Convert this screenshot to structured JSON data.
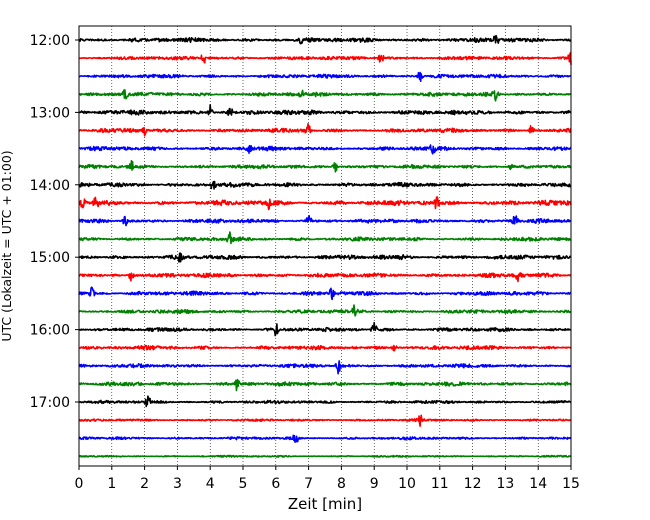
{
  "chart_data": {
    "type": "line",
    "title": "",
    "xlabel": "Zeit  [min]",
    "ylabel": "UTC (Lokalzeit = UTC + 01:00)",
    "xlim": [
      0,
      15
    ],
    "x_ticks": [
      "0",
      "1",
      "2",
      "3",
      "4",
      "5",
      "6",
      "7",
      "8",
      "9",
      "10",
      "11",
      "12",
      "13",
      "14",
      "15"
    ],
    "y_ticks": [
      "12:00",
      "13:00",
      "14:00",
      "15:00",
      "16:00",
      "17:00"
    ],
    "grid": "vertical dotted lines at each minute",
    "trace_interval_min": 15,
    "traces": [
      {
        "start": "12:00",
        "color": "#000000",
        "amplitude": 0.26,
        "spikes": [
          6.8,
          12.7
        ]
      },
      {
        "start": "12:15",
        "color": "#ff0000",
        "amplitude": 0.22,
        "spikes": [
          3.8,
          9.2,
          15.0
        ]
      },
      {
        "start": "12:30",
        "color": "#0000ff",
        "amplitude": 0.22,
        "spikes": [
          10.4
        ]
      },
      {
        "start": "12:45",
        "color": "#008000",
        "amplitude": 0.24,
        "spikes": [
          1.4,
          6.8,
          12.7
        ]
      },
      {
        "start": "13:00",
        "color": "#000000",
        "amplitude": 0.28,
        "spikes": [
          4.0,
          4.6
        ]
      },
      {
        "start": "13:15",
        "color": "#ff0000",
        "amplitude": 0.24,
        "spikes": [
          2.0,
          7.0,
          13.8
        ]
      },
      {
        "start": "13:30",
        "color": "#0000ff",
        "amplitude": 0.24,
        "spikes": [
          5.2,
          10.8
        ]
      },
      {
        "start": "13:45",
        "color": "#008000",
        "amplitude": 0.22,
        "spikes": [
          1.6,
          7.8,
          13.2
        ]
      },
      {
        "start": "14:00",
        "color": "#000000",
        "amplitude": 0.26,
        "spikes": [
          4.1
        ]
      },
      {
        "start": "14:15",
        "color": "#ff0000",
        "amplitude": 0.3,
        "spikes": [
          0.1,
          0.5,
          5.8,
          10.9
        ]
      },
      {
        "start": "14:30",
        "color": "#0000ff",
        "amplitude": 0.24,
        "spikes": [
          1.4,
          7.0,
          13.3
        ]
      },
      {
        "start": "14:45",
        "color": "#008000",
        "amplitude": 0.22,
        "spikes": [
          4.6
        ]
      },
      {
        "start": "15:00",
        "color": "#000000",
        "amplitude": 0.26,
        "spikes": [
          3.1,
          9.8
        ]
      },
      {
        "start": "15:15",
        "color": "#ff0000",
        "amplitude": 0.26,
        "spikes": [
          1.6,
          13.4
        ]
      },
      {
        "start": "15:30",
        "color": "#0000ff",
        "amplitude": 0.24,
        "spikes": [
          0.4,
          7.7
        ]
      },
      {
        "start": "15:45",
        "color": "#008000",
        "amplitude": 0.22,
        "spikes": [
          8.4
        ]
      },
      {
        "start": "16:00",
        "color": "#000000",
        "amplitude": 0.22,
        "spikes": [
          6.0,
          9.0
        ]
      },
      {
        "start": "16:15",
        "color": "#ff0000",
        "amplitude": 0.24,
        "spikes": [
          9.6
        ]
      },
      {
        "start": "16:30",
        "color": "#0000ff",
        "amplitude": 0.22,
        "spikes": [
          7.9
        ]
      },
      {
        "start": "16:45",
        "color": "#008000",
        "amplitude": 0.24,
        "spikes": [
          4.8
        ]
      },
      {
        "start": "17:00",
        "color": "#000000",
        "amplitude": 0.18,
        "spikes": [
          2.1
        ]
      },
      {
        "start": "17:15",
        "color": "#ff0000",
        "amplitude": 0.14,
        "spikes": [
          10.4
        ]
      },
      {
        "start": "17:30",
        "color": "#0000ff",
        "amplitude": 0.16,
        "spikes": [
          6.6
        ]
      },
      {
        "start": "17:45",
        "color": "#008000",
        "amplitude": 0.1,
        "spikes": []
      }
    ]
  }
}
